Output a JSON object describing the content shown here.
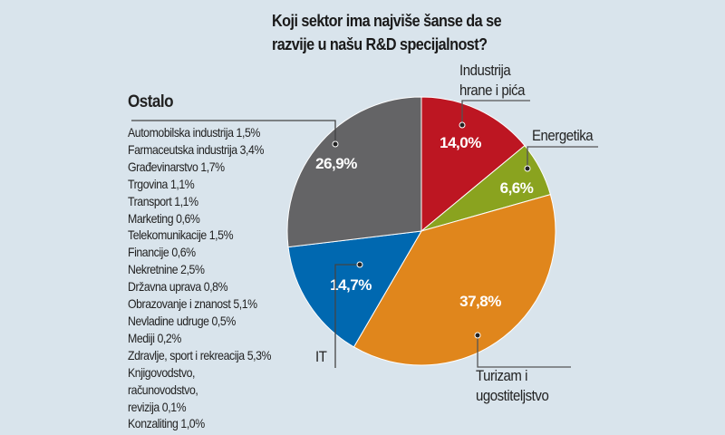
{
  "chart_data": {
    "type": "pie",
    "title": [
      "Koji sektor ima najviše šanse da se",
      "razvije u našu R&D specijalnost?"
    ],
    "slices": [
      {
        "label": "Industrija hrane i pića",
        "label_lines": [
          "Industrija",
          "hrane i pića"
        ],
        "value": 14.0,
        "value_label": "14,0%",
        "color": "#bd1622"
      },
      {
        "label": "Energetika",
        "label_lines": [
          "Energetika"
        ],
        "value": 6.6,
        "value_label": "6,6%",
        "color": "#8aa31f"
      },
      {
        "label": "Turizam i ugostiteljstvo",
        "label_lines": [
          "Turizam i",
          "ugostiteljstvo"
        ],
        "value": 37.8,
        "value_label": "37,8%",
        "color": "#e0861c"
      },
      {
        "label": "IT",
        "label_lines": [
          "IT"
        ],
        "value": 14.7,
        "value_label": "14,7%",
        "color": "#0068b0"
      },
      {
        "label": "Ostalo",
        "label_lines": [
          "Ostalo"
        ],
        "value": 26.9,
        "value_label": "26,9%",
        "color": "#646466"
      }
    ],
    "ostalo_breakdown": [
      "Automobilska industrija 1,5%",
      "Farmaceutska industrija 3,4%",
      "Građevinarstvo 1,7%",
      "Trgovina 1,1%",
      "Transport 1,1%",
      "Marketing 0,6%",
      "Telekomunikacije 1,5%",
      "Financije 0,6%",
      "Nekretnine 2,5%",
      "Državna uprava 0,8%",
      "Obrazovanje i znanost 5,1%",
      "Nevladine udruge 0,5%",
      "Mediji 0,2%",
      "Zdravlje, sport i rekreacija 5,3%",
      "Knjigovodstvo,",
      "računovodstvo,",
      "revizija 0,1%",
      "Konzaliting 1,0%"
    ],
    "start_angle": "12 o'clock",
    "direction": "clockwise"
  }
}
